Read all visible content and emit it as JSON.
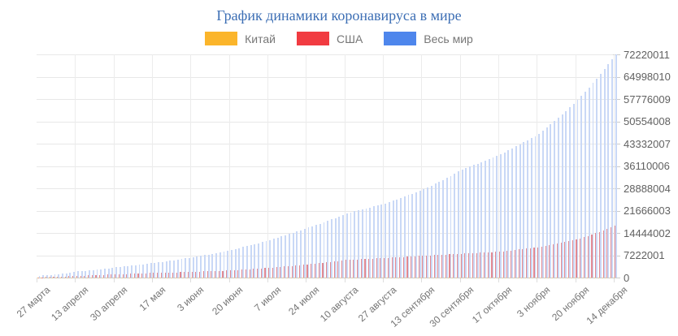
{
  "title": "График динамики коронавируса в мире",
  "legend": [
    {
      "label": "Китай",
      "color": "#FBB52B"
    },
    {
      "label": "США",
      "color": "#F13B41"
    },
    {
      "label": "Весь мир",
      "color": "#4E86EC"
    }
  ],
  "chart_data": {
    "type": "bar",
    "title": "График динамики коронавируса в мире",
    "legend_position": "top",
    "grid": true,
    "xlabel": "",
    "ylabel": "",
    "ylim": [
      0,
      72220011
    ],
    "y_tick_values": [
      0,
      7222001,
      14444002,
      21666003,
      28888004,
      36110006,
      43332007,
      50554008,
      57776009,
      64998010,
      72220011
    ],
    "x_tick_labels": [
      "27 марта",
      "13 апреля",
      "30 апреля",
      "17 мая",
      "3 июня",
      "20 июня",
      "7 июля",
      "24 июля",
      "10 августа",
      "27 августа",
      "13 сентября",
      "30 сентября",
      "17 октября",
      "3 ноября",
      "20 ноября",
      "14 декабря"
    ],
    "bar_count": 151,
    "bars_per_tick": 10,
    "series": [
      {
        "name": "Китай",
        "legend_color": "#FBB52B",
        "bar_color": "#F8C878",
        "values_at_ticks": [
          81900,
          83300,
          83900,
          84400,
          84600,
          85300,
          85700,
          86200,
          88600,
          89800,
          90200,
          90600,
          91000,
          91600,
          92500,
          94700
        ]
      },
      {
        "name": "США",
        "legend_color": "#F13B41",
        "bar_color": "#E28992",
        "values_at_ticks": [
          100000,
          580000,
          1050000,
          1500000,
          1850000,
          2300000,
          3150000,
          4250000,
          5700000,
          6300000,
          7100000,
          7700000,
          8400000,
          9800000,
          12300000,
          16800000
        ]
      },
      {
        "name": "Весь мир",
        "legend_color": "#4E86EC",
        "bar_color": "#C9D8F6",
        "values_at_ticks": [
          600000,
          2000000,
          3300000,
          4800000,
          6600000,
          9000000,
          12200000,
          16200000,
          20800000,
          24000000,
          28600000,
          35000000,
          39900000,
          46500000,
          57500000,
          72220011
        ]
      }
    ]
  }
}
